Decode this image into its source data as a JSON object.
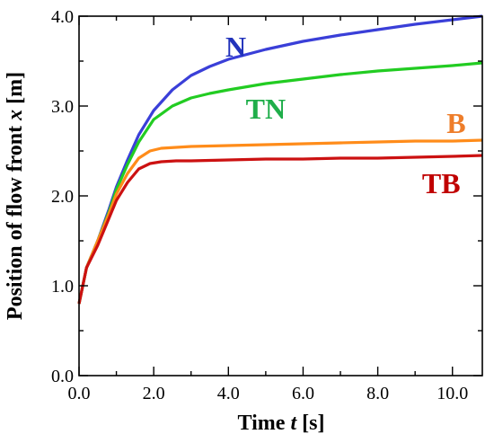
{
  "chart_data": {
    "type": "line",
    "xlabel": {
      "prefix": "Time ",
      "var": "t",
      "suffix": " [s]"
    },
    "ylabel": {
      "prefix": "Position of flow front ",
      "var": "x",
      "suffix": " [m]"
    },
    "xlim": [
      0,
      10.8
    ],
    "ylim": [
      0,
      4.0
    ],
    "xticks": [
      0,
      2,
      4,
      6,
      8,
      10
    ],
    "yticks": [
      0,
      1,
      2,
      3,
      4
    ],
    "x_tick_labels": [
      "0.0",
      "2.0",
      "4.0",
      "6.0",
      "8.0",
      "10.0"
    ],
    "y_tick_labels": [
      "0.0",
      "1.0",
      "2.0",
      "3.0",
      "4.0"
    ],
    "grid": false,
    "legend": "inline labels",
    "series": [
      {
        "name": "N",
        "color": "#3a3fd8",
        "label_color": "#2233bb",
        "x": [
          0.0,
          0.2,
          0.5,
          0.8,
          1.0,
          1.3,
          1.6,
          2.0,
          2.5,
          3.0,
          3.5,
          4.0,
          5.0,
          6.0,
          7.0,
          8.0,
          9.0,
          10.0,
          10.8
        ],
        "y": [
          0.8,
          1.2,
          1.5,
          1.85,
          2.1,
          2.4,
          2.68,
          2.95,
          3.18,
          3.34,
          3.44,
          3.52,
          3.63,
          3.72,
          3.79,
          3.85,
          3.91,
          3.96,
          4.0
        ]
      },
      {
        "name": "TN",
        "color": "#22cc22",
        "label_color": "#1fae4a",
        "x": [
          0.0,
          0.2,
          0.5,
          0.8,
          1.0,
          1.3,
          1.6,
          2.0,
          2.5,
          3.0,
          3.5,
          4.0,
          5.0,
          6.0,
          7.0,
          8.0,
          9.0,
          10.0,
          10.8
        ],
        "y": [
          0.8,
          1.2,
          1.5,
          1.82,
          2.07,
          2.35,
          2.6,
          2.85,
          3.0,
          3.09,
          3.14,
          3.18,
          3.25,
          3.3,
          3.35,
          3.39,
          3.42,
          3.45,
          3.48
        ]
      },
      {
        "name": "B",
        "color": "#ff8c1a",
        "label_color": "#ee7d2a",
        "x": [
          0.0,
          0.2,
          0.5,
          0.8,
          1.0,
          1.3,
          1.6,
          1.9,
          2.2,
          2.6,
          3.0,
          4.0,
          5.0,
          6.0,
          7.0,
          8.0,
          9.0,
          10.0,
          10.8
        ],
        "y": [
          0.8,
          1.2,
          1.5,
          1.8,
          2.02,
          2.25,
          2.42,
          2.5,
          2.53,
          2.54,
          2.55,
          2.56,
          2.57,
          2.58,
          2.59,
          2.6,
          2.61,
          2.61,
          2.62
        ]
      },
      {
        "name": "TB",
        "color": "#cc1111",
        "label_color": "#c00000",
        "x": [
          0.0,
          0.2,
          0.5,
          0.8,
          1.0,
          1.3,
          1.6,
          1.9,
          2.2,
          2.6,
          3.0,
          4.0,
          5.0,
          6.0,
          7.0,
          8.0,
          9.0,
          10.0,
          10.8
        ],
        "y": [
          0.8,
          1.2,
          1.45,
          1.75,
          1.95,
          2.15,
          2.3,
          2.36,
          2.38,
          2.39,
          2.39,
          2.4,
          2.41,
          2.41,
          2.42,
          2.42,
          2.43,
          2.44,
          2.45
        ]
      }
    ]
  }
}
